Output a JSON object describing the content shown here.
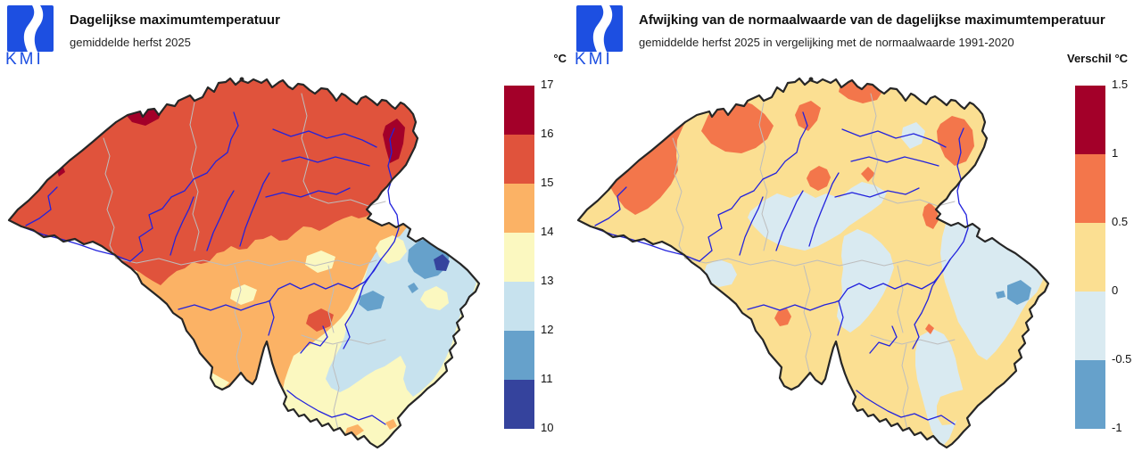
{
  "brand": {
    "logo_text": "KMI",
    "logo_color": "#1D4FE1"
  },
  "left_panel": {
    "title": "Dagelijkse maximumtemperatuur",
    "subtitle": "gemiddelde herfst 2025",
    "legend": {
      "title": "°C",
      "tick_labels": [
        "17",
        "16",
        "15",
        "14",
        "13",
        "12",
        "11",
        "10"
      ],
      "segment_colors": [
        "#A30029",
        "#E0533C",
        "#FBB265",
        "#FBF8C0",
        "#C7E2EE",
        "#66A1CB",
        "#35439D"
      ]
    }
  },
  "right_panel": {
    "title": "Afwijking van de normaalwaarde van de dagelijkse maximumtemperatuur",
    "subtitle": "gemiddelde herfst 2025 in vergelijking met de normaalwaarde 1991-2020",
    "legend": {
      "title": "Verschil °C",
      "tick_labels": [
        "1.5",
        "1",
        "0.5",
        "0",
        "-0.5",
        "-1"
      ],
      "segment_colors": [
        "#A30029",
        "#F3764B",
        "#FBDF92",
        "#D9EAF1",
        "#66A1CB"
      ]
    }
  },
  "map_style": {
    "outline_color": "#262626",
    "river_color": "#2222DD",
    "province_border_color": "#BDBDBD",
    "enclave_color": "#262626"
  },
  "palette": {
    "temp": {
      "t16_17": "#A30029",
      "t15_16": "#E0533C",
      "t14_15": "#FBB265",
      "t13_14": "#FBF8C0",
      "t12_13": "#C7E2EE",
      "t11_12": "#66A1CB",
      "t10_11": "#35439D"
    },
    "anom": {
      "p10_p15": "#A30029",
      "p05_p10": "#F3764B",
      "p00_p05": "#FBDF92",
      "m05_p00": "#D9EAF1",
      "m10_m05": "#66A1CB"
    }
  },
  "chart_data": [
    {
      "type": "heatmap",
      "title": "Dagelijkse maximumtemperatuur",
      "subtitle": "gemiddelde herfst 2025",
      "legend_title": "°C",
      "scale_ticks": [
        17,
        16,
        15,
        14,
        13,
        12,
        11,
        10
      ],
      "scale_colors_top_to_bottom": [
        "#A30029",
        "#E0533C",
        "#FBB265",
        "#FBF8C0",
        "#C7E2EE",
        "#66A1CB",
        "#35439D"
      ]
    },
    {
      "type": "heatmap",
      "title": "Afwijking van de normaalwaarde van de dagelijkse maximumtemperatuur",
      "subtitle": "gemiddelde herfst 2025 in vergelijking met de normaalwaarde 1991-2020",
      "legend_title": "Verschil °C",
      "scale_ticks": [
        1.5,
        1,
        0.5,
        0,
        -0.5,
        -1
      ],
      "scale_colors_top_to_bottom": [
        "#A30029",
        "#F3764B",
        "#FBDF92",
        "#D9EAF1",
        "#66A1CB"
      ]
    }
  ]
}
